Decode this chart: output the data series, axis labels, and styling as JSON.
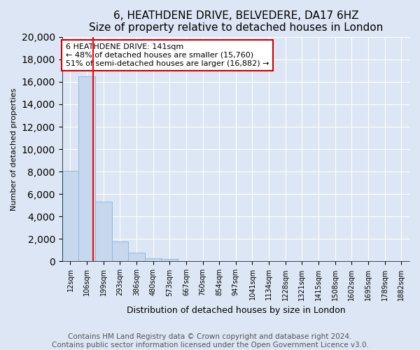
{
  "title": "6, HEATHDENE DRIVE, BELVEDERE, DA17 6HZ",
  "subtitle": "Size of property relative to detached houses in London",
  "xlabel": "Distribution of detached houses by size in London",
  "ylabel": "Number of detached properties",
  "bar_labels": [
    "12sqm",
    "106sqm",
    "199sqm",
    "293sqm",
    "386sqm",
    "480sqm",
    "573sqm",
    "667sqm",
    "760sqm",
    "854sqm",
    "947sqm",
    "1041sqm",
    "1134sqm",
    "1228sqm",
    "1321sqm",
    "1415sqm",
    "1508sqm",
    "1602sqm",
    "1695sqm",
    "1789sqm",
    "1882sqm"
  ],
  "bar_values": [
    8100,
    16500,
    5300,
    1750,
    750,
    250,
    200,
    0,
    0,
    0,
    0,
    0,
    0,
    0,
    0,
    0,
    0,
    0,
    0,
    0,
    0
  ],
  "bar_color": "#c5d8ee",
  "bar_edge_color": "#8ab4d8",
  "annotation_title": "6 HEATHDENE DRIVE: 141sqm",
  "annotation_line1": "← 48% of detached houses are smaller (15,760)",
  "annotation_line2": "51% of semi-detached houses are larger (16,882) →",
  "annotation_box_color": "#ffffff",
  "annotation_box_edge": "#cc0000",
  "ylim": [
    0,
    20000
  ],
  "yticks": [
    0,
    2000,
    4000,
    6000,
    8000,
    10000,
    12000,
    14000,
    16000,
    18000,
    20000
  ],
  "footer_line1": "Contains HM Land Registry data © Crown copyright and database right 2024.",
  "footer_line2": "Contains public sector information licensed under the Open Government Licence v3.0.",
  "bg_color": "#dce6f5",
  "plot_bg_color": "#dce6f5",
  "grid_color": "#ffffff",
  "title_fontsize": 11,
  "footer_fontsize": 7.5
}
